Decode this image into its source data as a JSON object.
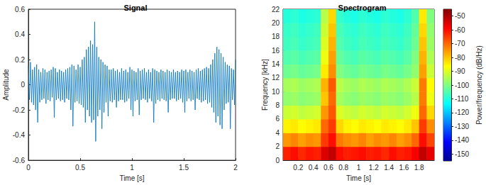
{
  "chart_data": [
    {
      "type": "line",
      "title": "Signal",
      "x_label": "Time [s]",
      "y_label": "Amplitude",
      "color": "#0072bd",
      "grid": false,
      "xlim": [
        0,
        2
      ],
      "xticks": [
        0,
        0.5,
        1,
        1.5,
        2
      ],
      "ylim": [
        -0.6,
        0.6
      ],
      "yticks": [
        -0.6,
        -0.4,
        -0.2,
        0,
        0.2,
        0.4,
        0.6
      ],
      "x": [
        0,
        0.01,
        0.02,
        0.03,
        0.04,
        0.05,
        0.06,
        0.07,
        0.08,
        0.09,
        0.1,
        0.11,
        0.12,
        0.13,
        0.14,
        0.15,
        0.16,
        0.17,
        0.18,
        0.19,
        0.2,
        0.21,
        0.22,
        0.23,
        0.24,
        0.25,
        0.26,
        0.27,
        0.28,
        0.29,
        0.3,
        0.31,
        0.32,
        0.33,
        0.34,
        0.35,
        0.36,
        0.37,
        0.38,
        0.39,
        0.4,
        0.41,
        0.42,
        0.43,
        0.44,
        0.45,
        0.46,
        0.47,
        0.48,
        0.49,
        0.5,
        0.51,
        0.52,
        0.53,
        0.54,
        0.55,
        0.56,
        0.57,
        0.58,
        0.59,
        0.6,
        0.61,
        0.62,
        0.63,
        0.64,
        0.65,
        0.66,
        0.67,
        0.68,
        0.69,
        0.7,
        0.71,
        0.72,
        0.73,
        0.74,
        0.75,
        0.76,
        0.77,
        0.78,
        0.79,
        0.8,
        0.81,
        0.82,
        0.83,
        0.84,
        0.85,
        0.86,
        0.87,
        0.88,
        0.89,
        0.9,
        0.91,
        0.92,
        0.93,
        0.94,
        0.95,
        0.96,
        0.97,
        0.98,
        0.99,
        1,
        1.01,
        1.02,
        1.03,
        1.04,
        1.05,
        1.06,
        1.07,
        1.08,
        1.09,
        1.1,
        1.11,
        1.12,
        1.13,
        1.14,
        1.15,
        1.16,
        1.17,
        1.18,
        1.19,
        1.2,
        1.21,
        1.22,
        1.23,
        1.24,
        1.25,
        1.26,
        1.27,
        1.28,
        1.29,
        1.3,
        1.31,
        1.32,
        1.33,
        1.34,
        1.35,
        1.36,
        1.37,
        1.38,
        1.39,
        1.4,
        1.41,
        1.42,
        1.43,
        1.44,
        1.45,
        1.46,
        1.47,
        1.48,
        1.49,
        1.5,
        1.51,
        1.52,
        1.53,
        1.54,
        1.55,
        1.56,
        1.57,
        1.58,
        1.59,
        1.6,
        1.61,
        1.62,
        1.63,
        1.64,
        1.65,
        1.66,
        1.67,
        1.68,
        1.69,
        1.7,
        1.71,
        1.72,
        1.73,
        1.74,
        1.75,
        1.76,
        1.77,
        1.78,
        1.79,
        1.8,
        1.81,
        1.82,
        1.83,
        1.84,
        1.85,
        1.86,
        1.87,
        1.88,
        1.89,
        1.9,
        1.91,
        1.92,
        1.93,
        1.94,
        1.95,
        1.96,
        1.97,
        1.98,
        1.99,
        2
      ],
      "values": [
        0.15,
        -0.12,
        0.18,
        -0.14,
        0.12,
        -0.16,
        0.14,
        -0.2,
        0.16,
        -0.3,
        0.12,
        -0.14,
        0.1,
        -0.12,
        0.13,
        -0.11,
        0.12,
        -0.15,
        0.1,
        -0.12,
        0.11,
        -0.13,
        0.12,
        -0.1,
        0.14,
        -0.26,
        0.13,
        -0.12,
        0.1,
        -0.11,
        0.12,
        -0.13,
        0.11,
        -0.12,
        0.1,
        -0.14,
        0.12,
        -0.11,
        0.13,
        -0.12,
        0.14,
        -0.2,
        0.16,
        -0.33,
        0.15,
        -0.14,
        0.12,
        -0.13,
        0.16,
        -0.15,
        0.14,
        -0.16,
        0.2,
        -0.18,
        0.22,
        -0.3,
        0.28,
        -0.2,
        0.3,
        -0.25,
        0.35,
        -0.3,
        0.32,
        -0.28,
        0.5,
        -0.45,
        0.3,
        -0.25,
        0.22,
        -0.2,
        0.2,
        -0.35,
        0.18,
        -0.22,
        0.16,
        -0.14,
        0.15,
        -0.25,
        0.12,
        -0.13,
        0.12,
        -0.14,
        0.13,
        -0.12,
        0.11,
        -0.18,
        0.12,
        -0.13,
        0.1,
        -0.12,
        0.13,
        -0.12,
        0.11,
        -0.14,
        0.12,
        -0.13,
        0.1,
        -0.11,
        0.14,
        -0.2,
        0.12,
        -0.25,
        0.11,
        -0.13,
        0.1,
        -0.12,
        0.13,
        -0.24,
        0.11,
        -0.12,
        0.12,
        -0.11,
        0.13,
        -0.12,
        0.1,
        -0.14,
        0.12,
        -0.11,
        0.1,
        -0.13,
        0.13,
        -0.3,
        0.12,
        -0.15,
        0.11,
        -0.12,
        0.1,
        -0.13,
        0.12,
        -0.11,
        0.11,
        -0.12,
        0.1,
        -0.13,
        0.12,
        -0.22,
        0.11,
        -0.12,
        0.1,
        -0.11,
        0.12,
        -0.11,
        0.1,
        -0.13,
        0.11,
        -0.12,
        0.1,
        -0.11,
        0.12,
        -0.14,
        0.11,
        -0.22,
        0.12,
        -0.13,
        0.1,
        -0.11,
        0.12,
        -0.13,
        0.11,
        -0.12,
        0.1,
        -0.2,
        0.12,
        -0.11,
        0.13,
        -0.12,
        0.11,
        -0.14,
        0.12,
        -0.13,
        0.13,
        -0.12,
        0.14,
        -0.15,
        0.13,
        -0.14,
        0.16,
        -0.18,
        0.2,
        -0.22,
        0.25,
        -0.3,
        0.3,
        -0.25,
        0.28,
        -0.32,
        0.25,
        -0.35,
        0.22,
        -0.2,
        0.18,
        -0.15,
        0.16,
        -0.14,
        0.15,
        -0.35,
        0.13,
        -0.12,
        0.12,
        -0.16,
        0.2
      ]
    },
    {
      "type": "heatmap",
      "title": "Spectrogram",
      "x_label": "Time [s]",
      "y_label": "Frequency [kHz]",
      "grid": false,
      "xlim": [
        0,
        2
      ],
      "xticks": [
        0.2,
        0.4,
        0.6,
        0.8,
        1,
        1.2,
        1.4,
        1.6,
        1.8
      ],
      "ylim": [
        0,
        22
      ],
      "yticks": [
        0,
        2,
        4,
        6,
        8,
        10,
        12,
        14,
        16,
        18,
        20,
        22
      ],
      "time_edges": [
        0,
        0.1,
        0.2,
        0.3,
        0.4,
        0.5,
        0.6,
        0.7,
        0.8,
        0.9,
        1,
        1.1,
        1.2,
        1.3,
        1.4,
        1.5,
        1.6,
        1.7,
        1.8,
        1.9,
        2
      ],
      "frequency_edges": [
        0,
        2,
        4,
        6,
        8,
        10,
        12,
        14,
        16,
        18,
        20,
        22
      ],
      "power_db": [
        [
          -62,
          -60,
          -63,
          -61,
          -62,
          -55,
          -52,
          -60,
          -62,
          -61,
          -60,
          -62,
          -61,
          -63,
          -60,
          -62,
          -61,
          -58,
          -52,
          -56
        ],
        [
          -75,
          -73,
          -76,
          -74,
          -75,
          -65,
          -60,
          -72,
          -74,
          -75,
          -73,
          -76,
          -74,
          -75,
          -73,
          -76,
          -74,
          -70,
          -60,
          -66
        ],
        [
          -85,
          -84,
          -86,
          -85,
          -84,
          -70,
          -65,
          -82,
          -85,
          -86,
          -84,
          -85,
          -86,
          -84,
          -85,
          -86,
          -84,
          -80,
          -65,
          -74
        ],
        [
          -92,
          -91,
          -93,
          -92,
          -91,
          -75,
          -68,
          -90,
          -92,
          -93,
          -91,
          -92,
          -93,
          -91,
          -92,
          -93,
          -91,
          -88,
          -70,
          -82
        ],
        [
          -98,
          -97,
          -99,
          -98,
          -97,
          -80,
          -70,
          -96,
          -98,
          -99,
          -97,
          -98,
          -99,
          -97,
          -98,
          -99,
          -97,
          -94,
          -72,
          -88
        ],
        [
          -96,
          -95,
          -97,
          -96,
          -95,
          -78,
          -68,
          -94,
          -96,
          -97,
          -95,
          -96,
          -97,
          -95,
          -96,
          -97,
          -95,
          -92,
          -72,
          -86
        ],
        [
          -102,
          -101,
          -103,
          -102,
          -101,
          -84,
          -74,
          -100,
          -102,
          -103,
          -101,
          -102,
          -103,
          -101,
          -102,
          -103,
          -101,
          -98,
          -76,
          -92
        ],
        [
          -105,
          -104,
          -106,
          -105,
          -104,
          -88,
          -76,
          -103,
          -105,
          -106,
          -104,
          -105,
          -106,
          -104,
          -105,
          -106,
          -104,
          -100,
          -78,
          -95
        ],
        [
          -107,
          -106,
          -108,
          -107,
          -106,
          -90,
          -78,
          -105,
          -107,
          -108,
          -106,
          -107,
          -108,
          -106,
          -107,
          -108,
          -106,
          -102,
          -80,
          -97
        ],
        [
          -108,
          -107,
          -109,
          -108,
          -107,
          -92,
          -80,
          -106,
          -108,
          -109,
          -107,
          -108,
          -109,
          -107,
          -108,
          -109,
          -107,
          -103,
          -82,
          -98
        ],
        [
          -110,
          -109,
          -111,
          -110,
          -109,
          -94,
          -82,
          -108,
          -110,
          -111,
          -109,
          -110,
          -111,
          -109,
          -110,
          -111,
          -109,
          -105,
          -84,
          -100
        ]
      ],
      "colorbar_label": "Power/frequency (dB/Hz)",
      "colorbar_range": [
        -155,
        -45
      ],
      "colorbar_ticks": [
        -150,
        -140,
        -130,
        -120,
        -110,
        -100,
        -90,
        -80,
        -70,
        -60,
        -50
      ]
    }
  ]
}
